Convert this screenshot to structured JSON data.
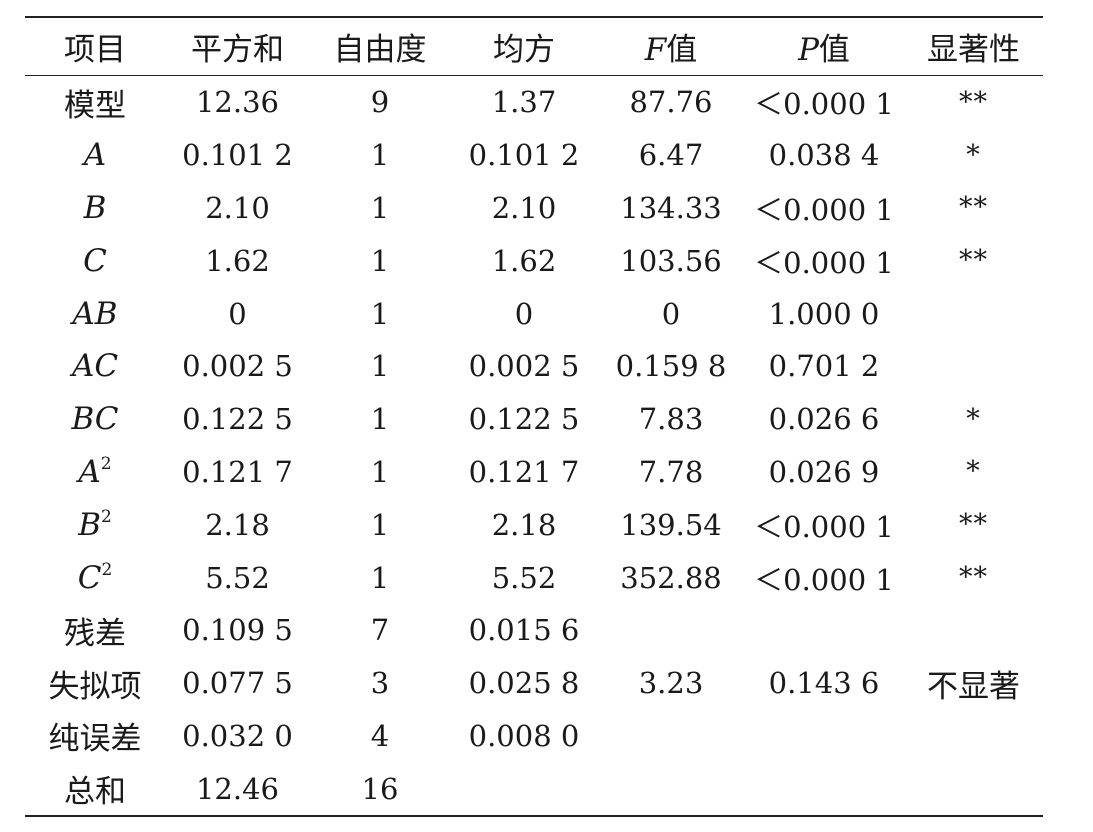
{
  "header": {
    "item": "项目",
    "sum_of_squares": "平方和",
    "df": "自由度",
    "mean_square": "均方",
    "f_letter": "F",
    "f_suffix": "值",
    "p_letter": "P",
    "p_suffix": "值",
    "significance": "显著性"
  },
  "rows": [
    {
      "label": "模型",
      "italic": false,
      "sup": "",
      "ss": "12.36",
      "df": "9",
      "ms": "1.37",
      "f": "87.76",
      "p": "＜0.000 1",
      "sig": "**"
    },
    {
      "label": "A",
      "italic": true,
      "sup": "",
      "ss": "0.101 2",
      "df": "1",
      "ms": "0.101 2",
      "f": "6.47",
      "p": "0.038 4",
      "sig": "*"
    },
    {
      "label": "B",
      "italic": true,
      "sup": "",
      "ss": "2.10",
      "df": "1",
      "ms": "2.10",
      "f": "134.33",
      "p": "＜0.000 1",
      "sig": "**"
    },
    {
      "label": "C",
      "italic": true,
      "sup": "",
      "ss": "1.62",
      "df": "1",
      "ms": "1.62",
      "f": "103.56",
      "p": "＜0.000 1",
      "sig": "**"
    },
    {
      "label": "AB",
      "italic": true,
      "sup": "",
      "ss": "0",
      "df": "1",
      "ms": "0",
      "f": "0",
      "p": "1.000 0",
      "sig": ""
    },
    {
      "label": "AC",
      "italic": true,
      "sup": "",
      "ss": "0.002 5",
      "df": "1",
      "ms": "0.002 5",
      "f": "0.159 8",
      "p": "0.701 2",
      "sig": ""
    },
    {
      "label": "BC",
      "italic": true,
      "sup": "",
      "ss": "0.122 5",
      "df": "1",
      "ms": "0.122 5",
      "f": "7.83",
      "p": "0.026 6",
      "sig": "*"
    },
    {
      "label": "A",
      "italic": true,
      "sup": "2",
      "ss": "0.121 7",
      "df": "1",
      "ms": "0.121 7",
      "f": "7.78",
      "p": "0.026 9",
      "sig": "*"
    },
    {
      "label": "B",
      "italic": true,
      "sup": "2",
      "ss": "2.18",
      "df": "1",
      "ms": "2.18",
      "f": "139.54",
      "p": "＜0.000 1",
      "sig": "**"
    },
    {
      "label": "C",
      "italic": true,
      "sup": "2",
      "ss": "5.52",
      "df": "1",
      "ms": "5.52",
      "f": "352.88",
      "p": "＜0.000 1",
      "sig": "**"
    },
    {
      "label": "残差",
      "italic": false,
      "sup": "",
      "ss": "0.109 5",
      "df": "7",
      "ms": "0.015 6",
      "f": "",
      "p": "",
      "sig": ""
    },
    {
      "label": "失拟项",
      "italic": false,
      "sup": "",
      "ss": "0.077 5",
      "df": "3",
      "ms": "0.025 8",
      "f": "3.23",
      "p": "0.143 6",
      "sig": "不显著"
    },
    {
      "label": "纯误差",
      "italic": false,
      "sup": "",
      "ss": "0.032 0",
      "df": "4",
      "ms": "0.008 0",
      "f": "",
      "p": "",
      "sig": ""
    },
    {
      "label": "总和",
      "italic": false,
      "sup": "",
      "ss": "12.46",
      "df": "16",
      "ms": "",
      "f": "",
      "p": "",
      "sig": ""
    }
  ]
}
